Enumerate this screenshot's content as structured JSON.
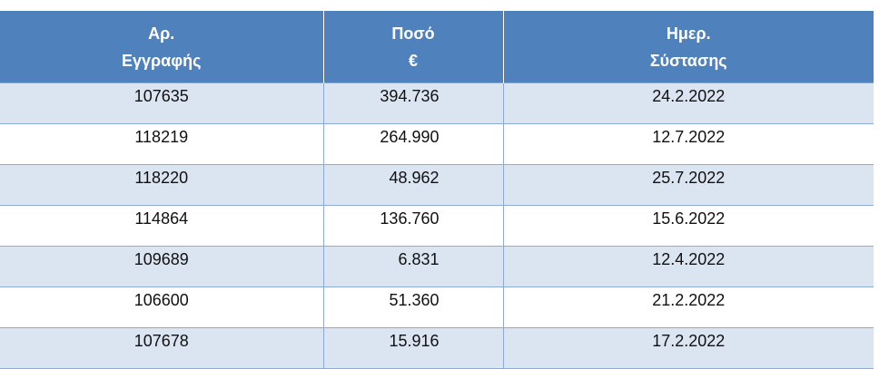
{
  "table": {
    "headers": {
      "reg": [
        "Αρ.",
        "Εγγραφής"
      ],
      "amount": [
        "Ποσό",
        "€"
      ],
      "date": [
        "Ημερ.",
        "Σύστασης"
      ]
    },
    "rows": [
      {
        "reg": "107635",
        "amount": "394.736",
        "date": "24.2.2022"
      },
      {
        "reg": "118219",
        "amount": "264.990",
        "date": "12.7.2022"
      },
      {
        "reg": "118220",
        "amount": "48.962",
        "date": "25.7.2022"
      },
      {
        "reg": "114864",
        "amount": "136.760",
        "date": "15.6.2022"
      },
      {
        "reg": "109689",
        "amount": "6.831",
        "date": "12.4.2022"
      },
      {
        "reg": "106600",
        "amount": "51.360",
        "date": "21.2.2022"
      },
      {
        "reg": "107678",
        "amount": "15.916",
        "date": "17.2.2022"
      }
    ]
  },
  "colors": {
    "header_bg": "#4f81bd",
    "header_text": "#ffffff",
    "band_bg": "#dbe5f1",
    "grid_line": "#8eaadb"
  }
}
